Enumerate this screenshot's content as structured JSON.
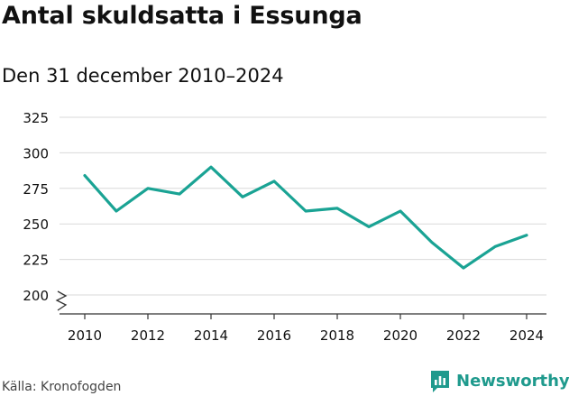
{
  "header": {
    "title": "Antal skuldsatta i Essunga",
    "subtitle": "Den 31 december 2010–2024"
  },
  "footer": {
    "source": "Källa: Kronofogden",
    "brand": "Newsworthy"
  },
  "colors": {
    "line": "#1aa394",
    "grid": "#d9d9d9",
    "axis": "#333333",
    "text": "#111111",
    "brand": "#1f9a8d"
  },
  "chart_data": {
    "type": "line",
    "x": [
      2010,
      2011,
      2012,
      2013,
      2014,
      2015,
      2016,
      2017,
      2018,
      2019,
      2020,
      2021,
      2022,
      2023,
      2024
    ],
    "series": [
      {
        "values": [
          284,
          259,
          275,
          271,
          290,
          269,
          280,
          259,
          261,
          248,
          259,
          237,
          219,
          234,
          242
        ]
      }
    ],
    "title": "",
    "xlabel": "",
    "ylabel": "",
    "ylim": [
      200,
      325
    ],
    "yticks": [
      200,
      225,
      250,
      275,
      300,
      325
    ],
    "xticks": [
      2010,
      2012,
      2014,
      2016,
      2018,
      2020,
      2022,
      2024
    ],
    "axis_break": true,
    "grid": true,
    "legend": "none"
  }
}
